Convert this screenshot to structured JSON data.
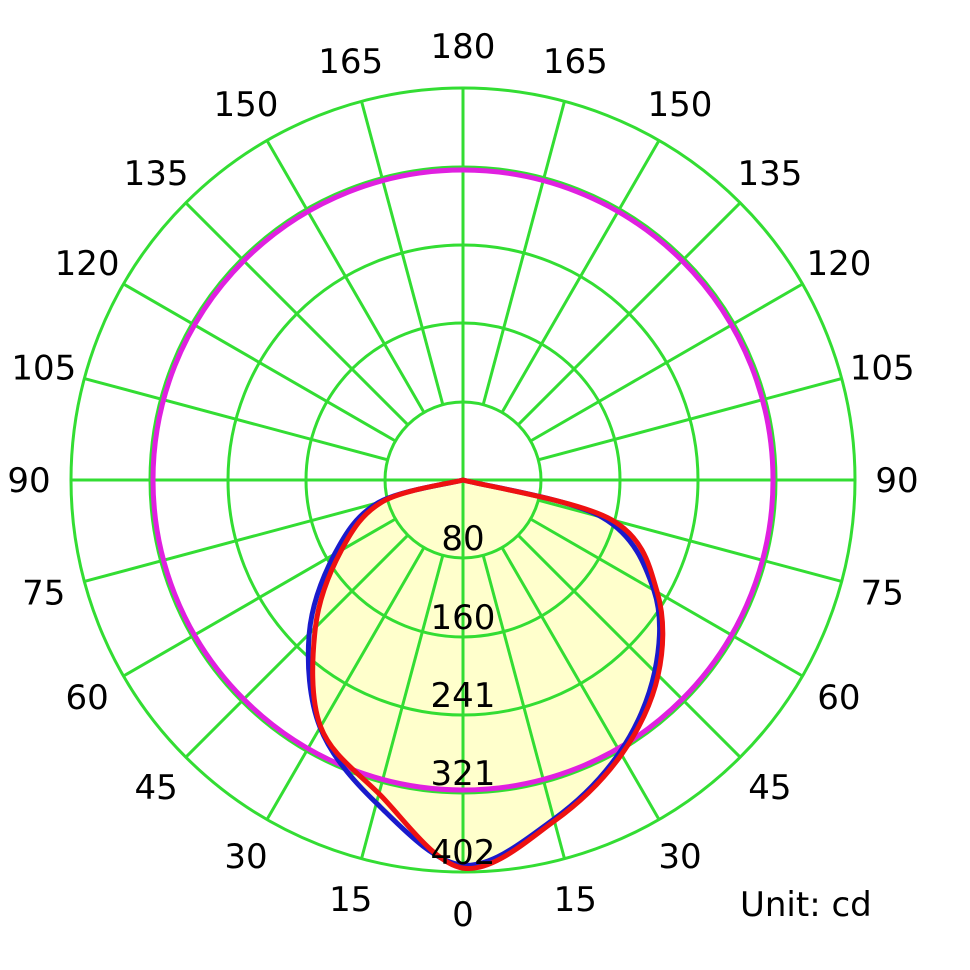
{
  "chart_data": {
    "type": "polar",
    "unit_label": "Unit: cd",
    "radial_ticks": [
      80,
      160,
      241,
      321,
      402
    ],
    "angle_labels": [
      {
        "side": "left",
        "text": "0",
        "angle": 0
      },
      {
        "side": "left",
        "text": "15",
        "angle": 15
      },
      {
        "side": "left",
        "text": "30",
        "angle": 30
      },
      {
        "side": "left",
        "text": "45",
        "angle": 45
      },
      {
        "side": "left",
        "text": "60",
        "angle": 60
      },
      {
        "side": "left",
        "text": "75",
        "angle": 75
      },
      {
        "side": "left",
        "text": "90",
        "angle": 90
      },
      {
        "side": "left",
        "text": "105",
        "angle": 105
      },
      {
        "side": "left",
        "text": "120",
        "angle": 120
      },
      {
        "side": "left",
        "text": "135",
        "angle": 135
      },
      {
        "side": "left",
        "text": "150",
        "angle": 150
      },
      {
        "side": "left",
        "text": "165",
        "angle": 165
      },
      {
        "side": "top",
        "text": "180",
        "angle": 180
      },
      {
        "side": "right",
        "text": "15",
        "angle": 15
      },
      {
        "side": "right",
        "text": "30",
        "angle": 30
      },
      {
        "side": "right",
        "text": "45",
        "angle": 45
      },
      {
        "side": "right",
        "text": "60",
        "angle": 60
      },
      {
        "side": "right",
        "text": "75",
        "angle": 75
      },
      {
        "side": "right",
        "text": "90",
        "angle": 90
      },
      {
        "side": "right",
        "text": "105",
        "angle": 105
      },
      {
        "side": "right",
        "text": "120",
        "angle": 120
      },
      {
        "side": "right",
        "text": "135",
        "angle": 135
      },
      {
        "side": "right",
        "text": "150",
        "angle": 150
      },
      {
        "side": "right",
        "text": "165",
        "angle": 165
      }
    ],
    "series": [
      {
        "color": "#1a1acc",
        "points": [
          {
            "angle": -90,
            "value": 0
          },
          {
            "angle": -75,
            "value": 90
          },
          {
            "angle": -60,
            "value": 152
          },
          {
            "angle": -45,
            "value": 223
          },
          {
            "angle": -30,
            "value": 293
          },
          {
            "angle": -15,
            "value": 343
          },
          {
            "angle": 0,
            "value": 395
          },
          {
            "angle": 15,
            "value": 360
          },
          {
            "angle": 30,
            "value": 322
          },
          {
            "angle": 45,
            "value": 278
          },
          {
            "angle": 60,
            "value": 226
          },
          {
            "angle": 75,
            "value": 148
          },
          {
            "angle": 90,
            "value": 0
          }
        ]
      },
      {
        "color": "#ee1111",
        "points": [
          {
            "angle": -90,
            "value": 0
          },
          {
            "angle": -75,
            "value": 85
          },
          {
            "angle": -60,
            "value": 144
          },
          {
            "angle": -45,
            "value": 214
          },
          {
            "angle": -30,
            "value": 292
          },
          {
            "angle": -15,
            "value": 333
          },
          {
            "angle": 0,
            "value": 398
          },
          {
            "angle": 15,
            "value": 362
          },
          {
            "angle": 30,
            "value": 325
          },
          {
            "angle": 45,
            "value": 283
          },
          {
            "angle": 60,
            "value": 230
          },
          {
            "angle": 75,
            "value": 158
          },
          {
            "angle": 90,
            "value": 0
          }
        ]
      }
    ],
    "colors": {
      "grid": "#33dd33",
      "fill": "#ffffcc",
      "reference_circle": "#e020e0"
    }
  }
}
